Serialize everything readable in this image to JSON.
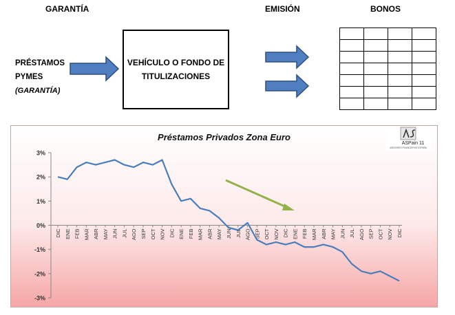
{
  "headers": {
    "garantia": "GARANTÍA",
    "emision": "EMISIÓN",
    "bonos": "BONOS"
  },
  "left_label": {
    "line1": "PRÉSTAMOS",
    "line2": "PYMES",
    "line3": "(GARANTÍA)"
  },
  "vehicle_box": {
    "line1": "VEHÍCULO O FONDO DE",
    "line2": "TITULIZACIONES"
  },
  "colors": {
    "arrow_fill": "#4f7fc1",
    "arrow_stroke": "#2d4f80",
    "series": "#4a7ebb",
    "trend_arrow": "#92b24a"
  },
  "logo": {
    "text": "ASPain 11",
    "subtext": "ASESORES FINANCIEROS ESPAÑA"
  },
  "chart_data": {
    "type": "line",
    "title": "Préstamos Privados Zona Euro",
    "y_ticks": [
      "3%",
      "2%",
      "1%",
      "0%",
      "-1%",
      "-2%",
      "-3%"
    ],
    "ylim": [
      -3,
      3
    ],
    "categories": [
      "DIC",
      "ENE",
      "FEB",
      "MAR",
      "ABR",
      "MAY",
      "JUN",
      "JUL",
      "AGO",
      "SEP",
      "OCT",
      "NOV",
      "DIC",
      "ENE",
      "FEB",
      "MAR",
      "ABR",
      "MAY",
      "JUN",
      "JUL",
      "AGO",
      "SEP",
      "OCT",
      "NOV",
      "DIC",
      "ENE",
      "FEB",
      "MAR",
      "ABR",
      "MAY",
      "JUN",
      "JUL",
      "AGO",
      "SEP",
      "OCT",
      "NOV",
      "DIC"
    ],
    "values": [
      2.0,
      1.9,
      2.4,
      2.6,
      2.5,
      2.6,
      2.7,
      2.5,
      2.4,
      2.6,
      2.5,
      2.7,
      1.7,
      1.0,
      1.1,
      0.7,
      0.6,
      0.3,
      -0.1,
      -0.2,
      0.1,
      -0.6,
      -0.8,
      -0.7,
      -0.8,
      -0.7,
      -0.9,
      -0.9,
      -0.8,
      -0.9,
      -1.1,
      -1.6,
      -1.9,
      -2.0,
      -1.9,
      -2.1,
      -2.3
    ],
    "grid": false,
    "legend": "none"
  }
}
